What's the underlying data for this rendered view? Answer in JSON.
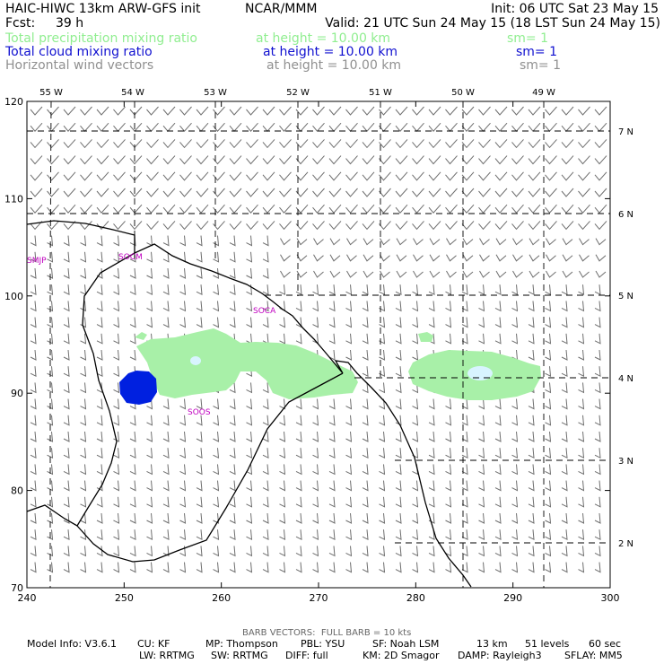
{
  "header": {
    "model": "HAIC-HIWC 13km ARW-GFS init",
    "center": "NCAR/MMM",
    "init": "Init: 06 UTC Sat 23 May 15",
    "fcst_label": "Fcst:",
    "fcst_value": "39 h",
    "valid": "Valid: 21 UTC Sun 24 May 15 (18 LST Sun 24 May 15)"
  },
  "fields": [
    {
      "name": "Total precipitation mixing ratio",
      "height": "at height = 10.00 km",
      "sm": "sm= 1",
      "color": "#90ee90"
    },
    {
      "name": "Total cloud mixing ratio",
      "height": "at height = 10.00 km",
      "sm": "sm= 1",
      "color": "#1010d0"
    },
    {
      "name": "Horizontal wind vectors",
      "height": "at height = 10.00 km",
      "sm": "sm= 1",
      "color": "#909090"
    }
  ],
  "map": {
    "x_ticks": [
      "240",
      "250",
      "260",
      "270",
      "280",
      "290",
      "300"
    ],
    "y_ticks": [
      "70",
      "80",
      "90",
      "100",
      "110",
      "120"
    ],
    "lon_labels": [
      "55 W",
      "54 W",
      "53 W",
      "52 W",
      "51 W",
      "50 W",
      "49 W"
    ],
    "lat_labels": [
      "7 N",
      "6 N",
      "5 N",
      "4 N",
      "3 N",
      "2 N"
    ],
    "stations": [
      "SMJP",
      "SOCM",
      "SOCA",
      "SOOS"
    ],
    "x_range": [
      240,
      300
    ],
    "y_range": [
      70,
      120
    ],
    "station_color": "#c000c0",
    "precip_color": "#a8f0a8",
    "precip_core_color": "#d8f4ff",
    "cloud_color": "#0020e0"
  },
  "footer": {
    "barb_note": "BARB VECTORS:  FULL BARB = 10 kts",
    "line1": [
      "Model Info: V3.6.1",
      "CU: KF",
      "MP: Thompson",
      "PBL: YSU",
      "SF: Noah LSM",
      "13 km",
      "51 levels",
      "60 sec"
    ],
    "line2": [
      "LW: RRTMG",
      "SW: RRTMG",
      "DIFF: full",
      "KM: 2D Smagor",
      "DAMP: Rayleigh3",
      "SFLAY: MM5"
    ]
  }
}
